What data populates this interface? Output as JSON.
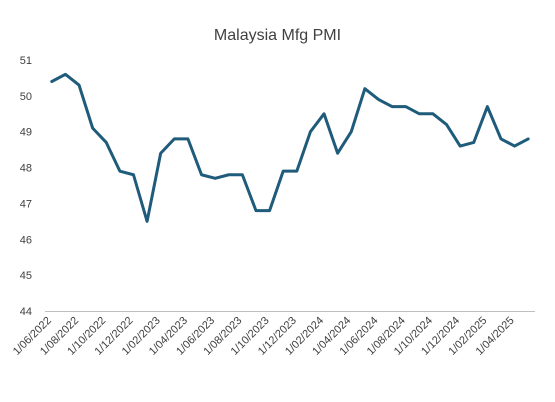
{
  "chart_data": {
    "type": "line",
    "title": "Malaysia Mfg PMI",
    "xlabel": "",
    "ylabel": "",
    "ylim": [
      44,
      51
    ],
    "yticks": [
      44,
      45,
      46,
      47,
      48,
      49,
      50,
      51
    ],
    "grid": false,
    "legend": "none",
    "series_color": "#1f5b7a",
    "x": [
      "2022-06",
      "2022-07",
      "2022-08",
      "2022-09",
      "2022-10",
      "2022-11",
      "2022-12",
      "2023-01",
      "2023-02",
      "2023-03",
      "2023-04",
      "2023-05",
      "2023-06",
      "2023-07",
      "2023-08",
      "2023-09",
      "2023-10",
      "2023-11",
      "2023-12",
      "2024-01",
      "2024-02",
      "2024-03",
      "2024-04",
      "2024-05",
      "2024-06",
      "2024-07",
      "2024-08",
      "2024-09",
      "2024-10",
      "2024-11",
      "2024-12",
      "2025-01",
      "2025-02",
      "2025-03",
      "2025-04",
      "2025-05"
    ],
    "tick_labels": [
      {
        "x": "2022-06",
        "label": "1/06/2022"
      },
      {
        "x": "2022-08",
        "label": "1/08/2022"
      },
      {
        "x": "2022-10",
        "label": "1/10/2022"
      },
      {
        "x": "2022-12",
        "label": "1/12/2022"
      },
      {
        "x": "2023-02",
        "label": "1/02/2023"
      },
      {
        "x": "2023-04",
        "label": "1/04/2023"
      },
      {
        "x": "2023-06",
        "label": "1/06/2023"
      },
      {
        "x": "2023-08",
        "label": "1/08/2023"
      },
      {
        "x": "2023-10",
        "label": "1/10/2023"
      },
      {
        "x": "2023-12",
        "label": "1/12/2023"
      },
      {
        "x": "2024-02",
        "label": "1/02/2024"
      },
      {
        "x": "2024-04",
        "label": "1/04/2024"
      },
      {
        "x": "2024-06",
        "label": "1/06/2024"
      },
      {
        "x": "2024-08",
        "label": "1/08/2024"
      },
      {
        "x": "2024-10",
        "label": "1/10/2024"
      },
      {
        "x": "2024-12",
        "label": "1/12/2024"
      },
      {
        "x": "2025-02",
        "label": "1/02/2025"
      },
      {
        "x": "2025-04",
        "label": "1/04/2025"
      }
    ],
    "series": [
      {
        "values": [
          50.4,
          50.6,
          50.3,
          49.1,
          48.7,
          47.9,
          47.8,
          46.5,
          48.4,
          48.8,
          48.8,
          47.8,
          47.7,
          47.8,
          47.8,
          46.8,
          46.8,
          47.9,
          47.9,
          49.0,
          49.5,
          48.4,
          49.0,
          50.2,
          49.9,
          49.7,
          49.7,
          49.5,
          49.5,
          49.2,
          48.6,
          48.7,
          49.7,
          48.8,
          48.6,
          48.8
        ]
      }
    ]
  }
}
